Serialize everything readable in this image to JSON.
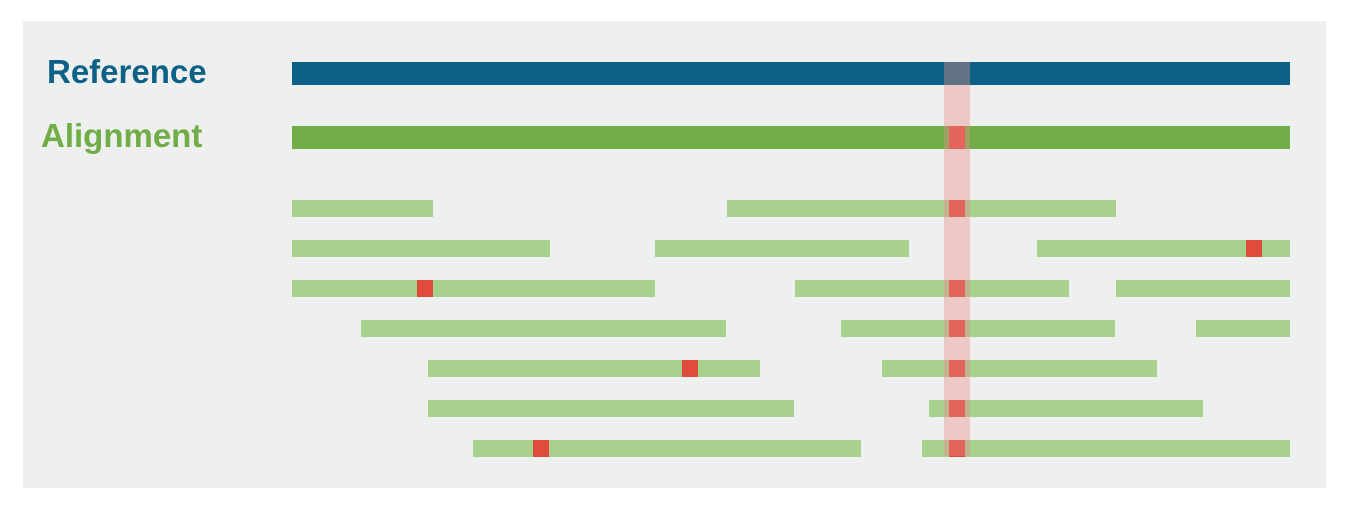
{
  "labels": {
    "reference": "Reference",
    "alignment": "Alignment"
  },
  "colors": {
    "background": "#eef0ef",
    "reference": "#0d6186",
    "alignment": "#70ad47",
    "read": "#a9d18e",
    "mismatch": "#e04b3c",
    "highlight": "#e88c8c"
  },
  "reads": [
    {
      "row": 0,
      "start": 292,
      "end": 433,
      "mismatches": []
    },
    {
      "row": 0,
      "start": 727,
      "end": 1116,
      "mismatches": [
        957
      ]
    },
    {
      "row": 1,
      "start": 292,
      "end": 550,
      "mismatches": []
    },
    {
      "row": 1,
      "start": 655,
      "end": 909,
      "mismatches": []
    },
    {
      "row": 1,
      "start": 1037,
      "end": 1290,
      "mismatches": [
        1254
      ]
    },
    {
      "row": 2,
      "start": 292,
      "end": 655,
      "mismatches": [
        425
      ]
    },
    {
      "row": 2,
      "start": 795,
      "end": 1069,
      "mismatches": [
        957
      ]
    },
    {
      "row": 2,
      "start": 1116,
      "end": 1290,
      "mismatches": []
    },
    {
      "row": 3,
      "start": 361,
      "end": 726,
      "mismatches": []
    },
    {
      "row": 3,
      "start": 841,
      "end": 1115,
      "mismatches": [
        957
      ]
    },
    {
      "row": 3,
      "start": 1196,
      "end": 1290,
      "mismatches": []
    },
    {
      "row": 4,
      "start": 428,
      "end": 760,
      "mismatches": [
        690
      ]
    },
    {
      "row": 4,
      "start": 882,
      "end": 1157,
      "mismatches": [
        957
      ]
    },
    {
      "row": 5,
      "start": 428,
      "end": 794,
      "mismatches": []
    },
    {
      "row": 5,
      "start": 929,
      "end": 1203,
      "mismatches": [
        957
      ]
    },
    {
      "row": 6,
      "start": 473,
      "end": 861,
      "mismatches": [
        541
      ]
    },
    {
      "row": 6,
      "start": 922,
      "end": 1290,
      "mismatches": [
        957
      ]
    }
  ],
  "alignment_mismatch": 957
}
